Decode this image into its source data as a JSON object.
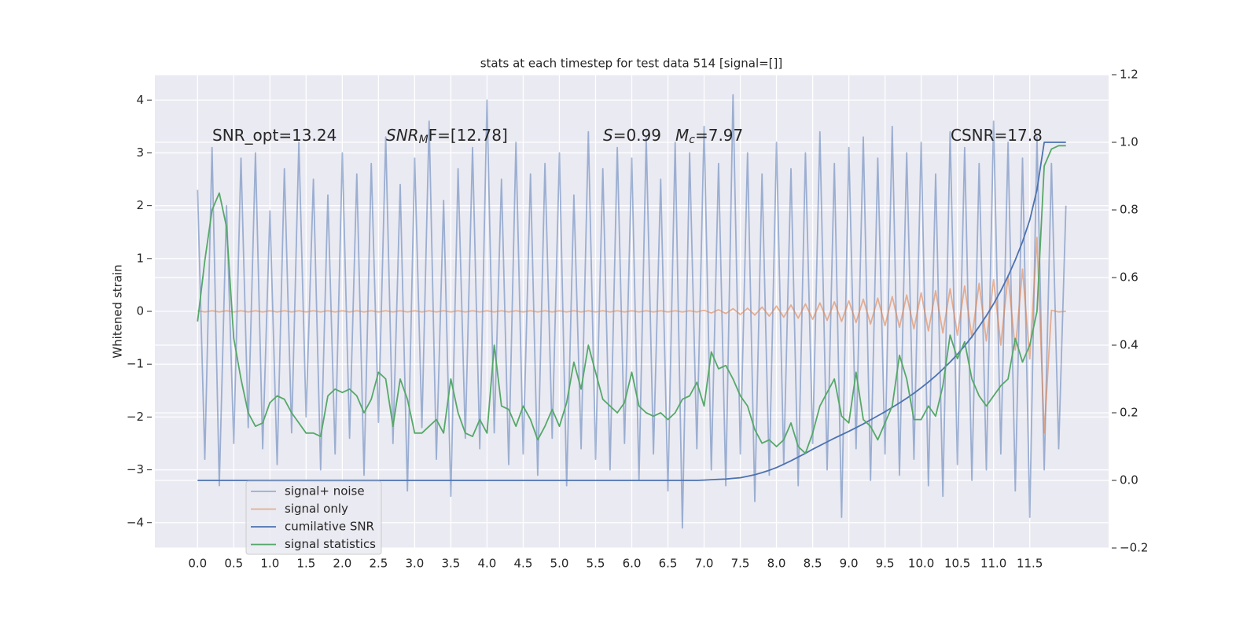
{
  "chart_data": {
    "type": "line",
    "title": "stats at each timestep for test data 514 [signal=[]]",
    "ylabel": "Whitened strain",
    "grid": true,
    "legend": "lower left",
    "background": "#eaeaf2",
    "xlim": [
      -0.59,
      12.59
    ],
    "ylim": [
      -4.48,
      4.48
    ],
    "y2lim": [
      -0.2,
      1.2
    ],
    "xticks": [
      {
        "value": 0,
        "label": "0.0"
      },
      0.5,
      {
        "value": 1,
        "label": "1.0"
      },
      1.5,
      {
        "value": 2,
        "label": "2.0"
      },
      2.5,
      {
        "value": 3,
        "label": "3.0"
      },
      3.5,
      {
        "value": 4,
        "label": "4.0"
      },
      4.5,
      {
        "value": 5,
        "label": "5.0"
      },
      5.5,
      {
        "value": 6,
        "label": "6.0"
      },
      6.5,
      {
        "value": 7,
        "label": "7.0"
      },
      7.5,
      {
        "value": 8,
        "label": "8.0"
      },
      8.5,
      {
        "value": 9,
        "label": "9.0"
      },
      9.5,
      {
        "value": 10,
        "label": "10.0"
      },
      10.5,
      {
        "value": 11,
        "label": "11.0"
      },
      11.5
    ],
    "yticks": [
      {
        "value": -4,
        "label": "−4"
      },
      {
        "value": -3,
        "label": "−3"
      },
      {
        "value": -2,
        "label": "−2"
      },
      {
        "value": -1,
        "label": "−1"
      },
      0,
      1,
      2,
      3,
      4
    ],
    "y2ticks": [
      {
        "value": -0.2,
        "label": "−0.2"
      },
      {
        "value": 0,
        "label": "0.0"
      },
      0.2,
      0.4,
      0.6,
      0.8,
      {
        "value": 1,
        "label": "1.0"
      },
      1.2
    ],
    "annotations": [
      [
        {
          "text": "SNR_opt=13.24"
        }
      ],
      [
        {
          "text": "SNR",
          "style": "italic"
        },
        {
          "text": "M",
          "style": "italic-sub"
        },
        {
          "text": "F=[12.78]"
        }
      ],
      [
        {
          "text": "S",
          "style": "italic"
        },
        {
          "text": "=0.99"
        }
      ],
      [
        {
          "text": "M",
          "style": "italic"
        },
        {
          "text": "c",
          "style": "italic-sub"
        },
        {
          "text": "=7.97"
        }
      ],
      [
        {
          "text": "CSNR=17.8"
        }
      ]
    ],
    "x": [
      0,
      0.1,
      0.2,
      0.3,
      0.4,
      0.5,
      0.6,
      0.7,
      0.8,
      0.9,
      1,
      1.1,
      1.2,
      1.3,
      1.4,
      1.5,
      1.6,
      1.7,
      1.8,
      1.9,
      2,
      2.1,
      2.2,
      2.3,
      2.4,
      2.5,
      2.6,
      2.7,
      2.8,
      2.9,
      3,
      3.1,
      3.2,
      3.3,
      3.4,
      3.5,
      3.6,
      3.7,
      3.8,
      3.9,
      4,
      4.1,
      4.2,
      4.3,
      4.4,
      4.5,
      4.6,
      4.7,
      4.8,
      4.9,
      5,
      5.1,
      5.2,
      5.3,
      5.4,
      5.5,
      5.6,
      5.7,
      5.8,
      5.9,
      6,
      6.1,
      6.2,
      6.3,
      6.4,
      6.5,
      6.6,
      6.7,
      6.8,
      6.9,
      7,
      7.1,
      7.2,
      7.3,
      7.4,
      7.5,
      7.6,
      7.7,
      7.8,
      7.9,
      8,
      8.1,
      8.2,
      8.3,
      8.4,
      8.5,
      8.6,
      8.7,
      8.8,
      8.9,
      9,
      9.1,
      9.2,
      9.3,
      9.4,
      9.5,
      9.6,
      9.7,
      9.8,
      9.9,
      10,
      10.1,
      10.2,
      10.3,
      10.4,
      10.5,
      10.6,
      10.7,
      10.8,
      10.9,
      11,
      11.1,
      11.2,
      11.3,
      11.4,
      11.5,
      11.6,
      11.7,
      11.8,
      11.9,
      12
    ],
    "series": [
      {
        "name": "signal+ noise",
        "color": "#4c72b0",
        "opacity": 0.5,
        "axis": "y",
        "values": [
          2.3,
          -2.8,
          3.1,
          -3.3,
          2.0,
          -2.5,
          2.9,
          -2.2,
          3.0,
          -2.6,
          1.9,
          -2.9,
          2.7,
          -2.3,
          3.2,
          -2.0,
          2.5,
          -3.0,
          2.2,
          -2.7,
          3.0,
          -2.4,
          2.6,
          -3.1,
          2.8,
          -2.1,
          3.3,
          -2.5,
          2.4,
          -3.4,
          2.9,
          -2.2,
          3.6,
          -2.8,
          2.1,
          -3.5,
          2.7,
          -2.4,
          3.1,
          -2.6,
          4.0,
          -2.3,
          2.5,
          -2.9,
          3.2,
          -2.7,
          2.6,
          -3.1,
          2.8,
          -2.4,
          3.0,
          -3.3,
          2.2,
          -2.6,
          3.4,
          -2.8,
          2.7,
          -3.0,
          3.1,
          -2.5,
          2.9,
          -3.2,
          3.3,
          -2.7,
          2.5,
          -3.4,
          3.2,
          -4.1,
          3.0,
          -2.6,
          3.5,
          -3.0,
          2.8,
          -3.3,
          4.1,
          -2.7,
          3.0,
          -3.6,
          2.6,
          -3.1,
          3.2,
          -2.9,
          2.7,
          -3.3,
          3.0,
          -2.5,
          3.4,
          -3.0,
          2.8,
          -3.9,
          3.1,
          -2.6,
          3.3,
          -3.2,
          2.9,
          -2.7,
          3.5,
          -3.1,
          3.0,
          -2.8,
          3.2,
          -3.3,
          2.6,
          -3.5,
          3.4,
          -2.9,
          3.1,
          -3.2,
          2.8,
          -3.0,
          3.6,
          -2.7,
          3.2,
          -3.4,
          2.9,
          -3.9,
          3.3,
          -3.0,
          2.8,
          -2.6,
          2.0
        ]
      },
      {
        "name": "signal only",
        "color": "#dd8452",
        "opacity": 0.6,
        "axis": "y",
        "values": [
          0.01,
          -0.01,
          0.01,
          -0.01,
          0.01,
          -0.01,
          0.01,
          -0.01,
          0.01,
          -0.01,
          0.01,
          -0.01,
          0.01,
          -0.01,
          0.01,
          -0.01,
          0.01,
          -0.01,
          0.01,
          -0.01,
          0.01,
          -0.01,
          0.01,
          -0.01,
          0.01,
          -0.01,
          0.01,
          -0.01,
          0.01,
          -0.01,
          0.01,
          -0.01,
          0.01,
          -0.01,
          0.01,
          -0.01,
          0.01,
          -0.01,
          0.01,
          -0.01,
          0.01,
          -0.01,
          0.01,
          -0.01,
          0.01,
          -0.01,
          0.01,
          -0.01,
          0.01,
          -0.01,
          0.01,
          -0.01,
          0.01,
          -0.01,
          0.01,
          -0.01,
          0.01,
          -0.01,
          0.01,
          -0.01,
          0.01,
          -0.01,
          0.01,
          -0.01,
          0.01,
          -0.01,
          0.01,
          -0.01,
          0.01,
          -0.01,
          0.02,
          -0.03,
          0.03,
          -0.04,
          0.05,
          -0.06,
          0.06,
          -0.07,
          0.08,
          -0.09,
          0.1,
          -0.11,
          0.12,
          -0.13,
          0.14,
          -0.15,
          0.16,
          -0.17,
          0.18,
          -0.19,
          0.2,
          -0.21,
          0.23,
          -0.24,
          0.25,
          -0.27,
          0.28,
          -0.3,
          0.31,
          -0.33,
          0.35,
          -0.37,
          0.39,
          -0.41,
          0.43,
          -0.45,
          0.48,
          -0.5,
          0.53,
          -0.56,
          0.6,
          -0.64,
          0.68,
          -0.73,
          0.8,
          -0.9,
          1.4,
          -2.3,
          0.02,
          -0.01,
          0
        ]
      },
      {
        "name": "cumilative SNR",
        "color": "#4c72b0",
        "opacity": 1,
        "axis": "y2",
        "values": [
          0,
          0,
          0,
          0,
          0,
          0,
          0,
          0,
          0,
          0,
          0,
          0,
          0,
          0,
          0,
          0,
          0,
          0,
          0,
          0,
          0,
          0,
          0,
          0,
          0,
          0,
          0,
          0,
          0,
          0,
          0,
          0,
          0,
          0,
          0,
          0,
          0,
          0,
          0,
          0,
          0,
          0,
          0,
          0,
          0,
          0,
          0,
          0,
          0,
          0,
          0,
          0,
          0,
          0,
          0,
          0,
          0,
          0,
          0,
          0,
          0,
          0,
          0,
          0,
          0,
          0,
          0,
          0,
          0,
          0,
          0.001,
          0.002,
          0.003,
          0.004,
          0.006,
          0.008,
          0.012,
          0.017,
          0.023,
          0.03,
          0.038,
          0.048,
          0.058,
          0.069,
          0.08,
          0.092,
          0.103,
          0.114,
          0.125,
          0.135,
          0.145,
          0.156,
          0.167,
          0.179,
          0.191,
          0.203,
          0.216,
          0.229,
          0.243,
          0.258,
          0.274,
          0.291,
          0.309,
          0.329,
          0.35,
          0.373,
          0.398,
          0.425,
          0.455,
          0.487,
          0.522,
          0.561,
          0.604,
          0.652,
          0.706,
          0.77,
          0.86,
          1.0,
          1.0,
          1.0,
          1.0
        ]
      },
      {
        "name": "signal statistics",
        "color": "#55a868",
        "opacity": 1,
        "axis": "y2",
        "values": [
          0.47,
          0.65,
          0.8,
          0.85,
          0.75,
          0.42,
          0.3,
          0.2,
          0.16,
          0.17,
          0.23,
          0.25,
          0.24,
          0.2,
          0.17,
          0.14,
          0.14,
          0.13,
          0.25,
          0.27,
          0.26,
          0.27,
          0.25,
          0.2,
          0.24,
          0.32,
          0.3,
          0.16,
          0.3,
          0.24,
          0.14,
          0.14,
          0.16,
          0.18,
          0.14,
          0.3,
          0.2,
          0.14,
          0.13,
          0.18,
          0.14,
          0.4,
          0.22,
          0.21,
          0.16,
          0.22,
          0.18,
          0.12,
          0.16,
          0.21,
          0.16,
          0.23,
          0.35,
          0.27,
          0.4,
          0.32,
          0.24,
          0.22,
          0.2,
          0.23,
          0.32,
          0.22,
          0.2,
          0.19,
          0.2,
          0.18,
          0.2,
          0.24,
          0.25,
          0.29,
          0.22,
          0.38,
          0.33,
          0.34,
          0.3,
          0.25,
          0.22,
          0.15,
          0.11,
          0.12,
          0.1,
          0.12,
          0.17,
          0.1,
          0.08,
          0.14,
          0.22,
          0.26,
          0.3,
          0.19,
          0.17,
          0.32,
          0.18,
          0.16,
          0.12,
          0.17,
          0.22,
          0.37,
          0.3,
          0.18,
          0.18,
          0.22,
          0.19,
          0.28,
          0.43,
          0.36,
          0.41,
          0.3,
          0.25,
          0.22,
          0.25,
          0.28,
          0.3,
          0.42,
          0.35,
          0.4,
          0.5,
          0.93,
          0.98,
          0.99,
          0.99
        ]
      }
    ]
  }
}
